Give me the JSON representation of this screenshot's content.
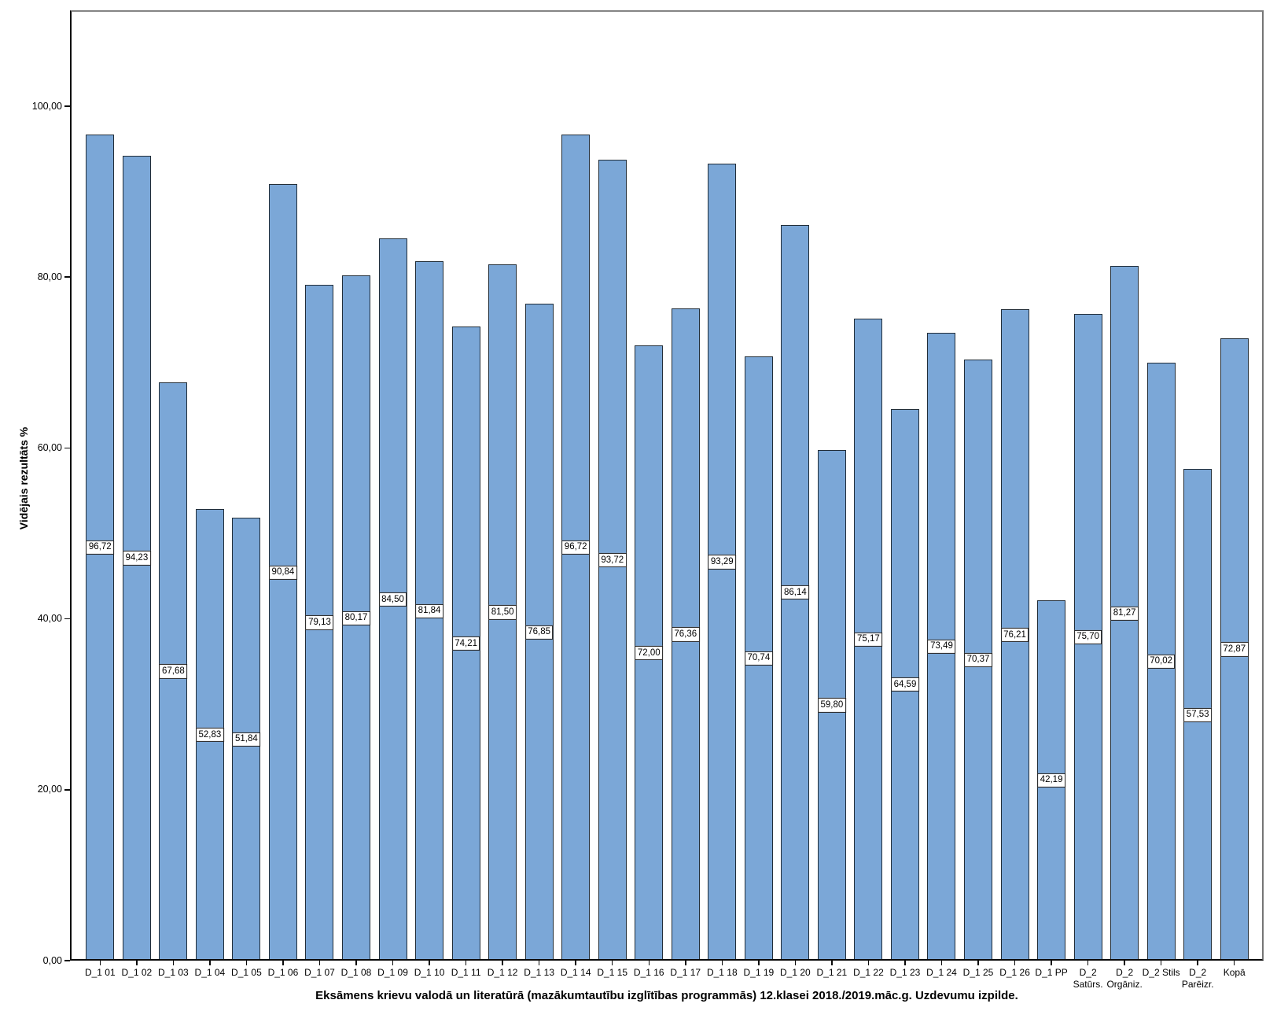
{
  "chart_data": {
    "type": "bar",
    "title": "Eksāmens krievu valodā un literatūrā (mazākumtautību izglītības programmās) 12.klasei 2018./2019.māc.g. Uzdevumu izpilde.",
    "xlabel": "",
    "ylabel": "Vidējais rezultāts %",
    "ylim": [
      0,
      111
    ],
    "yticks": [
      0,
      20,
      40,
      60,
      80,
      100
    ],
    "ytick_labels": [
      "0,00",
      "20,00",
      "40,00",
      "60,00",
      "80,00",
      "100,00"
    ],
    "grid": false,
    "legend": false,
    "value_label_style": "boxed-at-bar-middle",
    "categories": [
      "D_1 01",
      "D_1 02",
      "D_1 03",
      "D_1 04",
      "D_1 05",
      "D_1 06",
      "D_1 07",
      "D_1 08",
      "D_1 09",
      "D_1 10",
      "D_1 11",
      "D_1 12",
      "D_1 13",
      "D_1 14",
      "D_1 15",
      "D_1 16",
      "D_1 17",
      "D_1 18",
      "D_1 19",
      "D_1 20",
      "D_1 21",
      "D_1 22",
      "D_1 23",
      "D_1 24",
      "D_1 25",
      "D_1 26",
      "D_1 PP",
      "D_2\nSatūrs.",
      "D_2\nOrgāniz.",
      "D_2 Stils",
      "D_2\nParēizr.",
      "Kopā"
    ],
    "values": [
      96.72,
      94.23,
      67.68,
      52.83,
      51.84,
      90.84,
      79.13,
      80.17,
      84.5,
      81.84,
      74.21,
      81.5,
      76.85,
      96.72,
      93.72,
      72.0,
      76.36,
      93.29,
      70.74,
      86.14,
      59.8,
      75.17,
      64.59,
      73.49,
      70.37,
      76.21,
      42.19,
      75.7,
      81.27,
      70.02,
      57.53,
      72.87
    ],
    "value_labels": [
      "96,72",
      "94,23",
      "67,68",
      "52,83",
      "51,84",
      "90,84",
      "79,13",
      "80,17",
      "84,50",
      "81,84",
      "74,21",
      "81,50",
      "76,85",
      "96,72",
      "93,72",
      "72,00",
      "76,36",
      "93,29",
      "70,74",
      "86,14",
      "59,80",
      "75,17",
      "64,59",
      "73,49",
      "70,37",
      "76,21",
      "42,19",
      "75,70",
      "81,27",
      "70,02",
      "57,53",
      "72,87"
    ],
    "colors": {
      "bar_fill": "#7BA7D7",
      "bar_border": "#212D38",
      "axis": "#0a0a0a",
      "frame_top": "#858585",
      "frame_right": "#757575",
      "label_box_bg": "#ffffff",
      "label_box_border": "#1a1a1a",
      "text": "#000000"
    }
  }
}
